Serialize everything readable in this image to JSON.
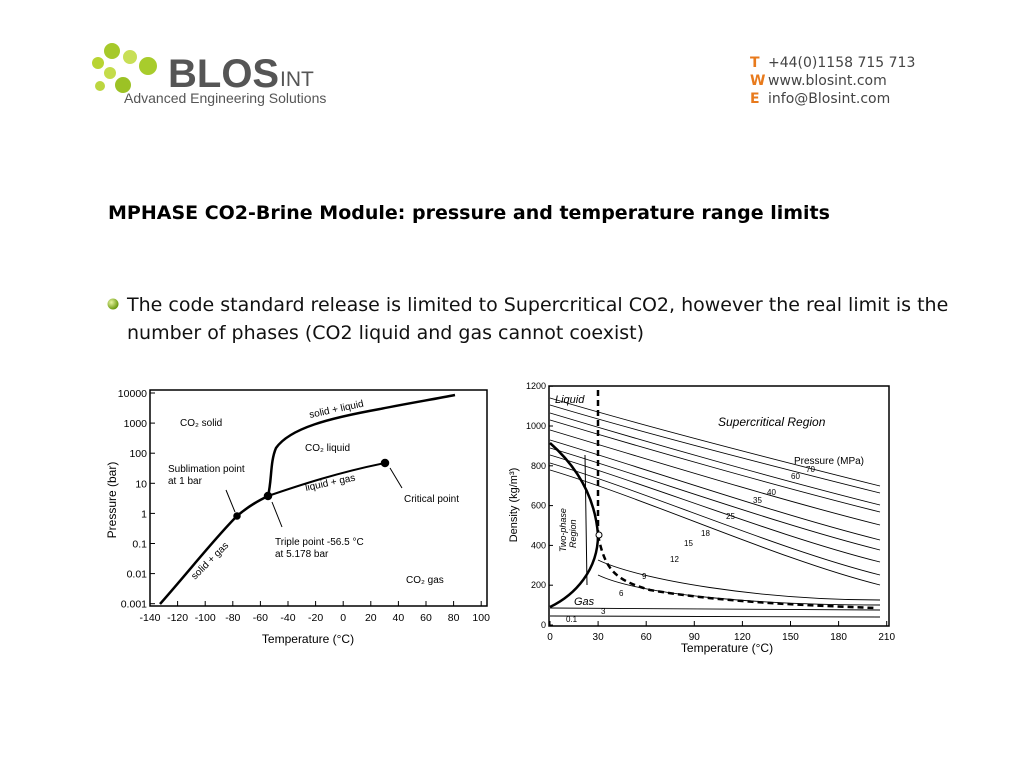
{
  "header": {
    "logo": {
      "main": "BLOS",
      "suffix": "INT",
      "tagline": "Advanced Engineering Solutions"
    },
    "contact": [
      {
        "key": "T",
        "text": "+44(0)1158 715 713"
      },
      {
        "key": "W",
        "text": "www.blosint.com"
      },
      {
        "key": "E",
        "text": "info@Blosint.com"
      }
    ]
  },
  "title": "MPHASE CO2-Brine Module: pressure and temperature range limits",
  "bullet": "The code standard release is limited to Supercritical CO2, however the real limit is the number of phases (CO2 liquid and gas cannot coexist)",
  "figures": [
    {
      "ylabel": "Pressure (bar)",
      "xlabel": "Temperature (°C)",
      "yticks": [
        "10000",
        "1000",
        "100",
        "10",
        "1",
        "0.1",
        "0.01",
        "0.001"
      ],
      "xticks": [
        "-140",
        "-120",
        "-100",
        "-80",
        "-60",
        "-40",
        "-20",
        "0",
        "20",
        "40",
        "60",
        "80",
        "100"
      ],
      "annotations": [
        "CO₂ solid",
        "solid + liquid",
        "CO₂ liquid",
        "Sublimation point",
        "at 1 bar",
        "liquid + gas",
        "Critical point",
        "Triple point -56.5 °C",
        "at 5.178 bar",
        "solid + gas",
        "CO₂ gas"
      ]
    },
    {
      "ylabel": "Density (kg/m³)",
      "xlabel": "Temperature (°C)",
      "yticks": [
        "0",
        "200",
        "400",
        "600",
        "800",
        "1000",
        "1200"
      ],
      "xticks": [
        "0",
        "30",
        "60",
        "90",
        "120",
        "150",
        "180",
        "210"
      ],
      "annotations": [
        "Liquid",
        "Supercritical Region",
        "Pressure (MPa)",
        "Two-phase",
        "Region",
        "Gas"
      ],
      "isobars": [
        "70",
        "60",
        "40",
        "35",
        "25",
        "18",
        "15",
        "12",
        "9",
        "6",
        "3",
        "0.1"
      ]
    }
  ]
}
